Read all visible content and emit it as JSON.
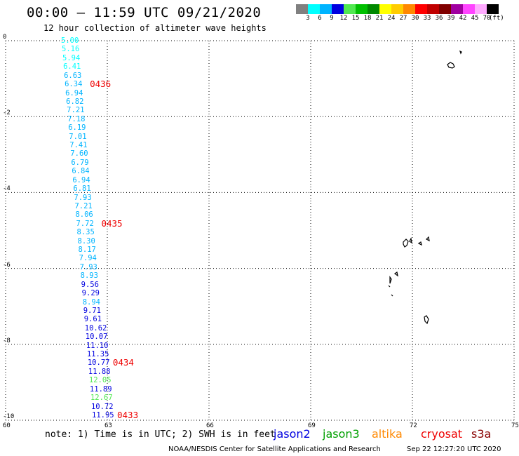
{
  "header": {
    "title": "00:00 – 11:59 UTC 09/21/2020",
    "subtitle": "12 hour collection of altimeter wave heights"
  },
  "legend": {
    "bins": [
      {
        "label": "3",
        "color": "#808080"
      },
      {
        "label": "6",
        "color": "#00ffff"
      },
      {
        "label": "9",
        "color": "#00b4ff"
      },
      {
        "label": "12",
        "color": "#0000e0"
      },
      {
        "label": "15",
        "color": "#50e850"
      },
      {
        "label": "18",
        "color": "#00c000"
      },
      {
        "label": "21",
        "color": "#008800"
      },
      {
        "label": "24",
        "color": "#ffff00"
      },
      {
        "label": "27",
        "color": "#ffcc00"
      },
      {
        "label": "30",
        "color": "#ff8800"
      },
      {
        "label": "33",
        "color": "#ff0000"
      },
      {
        "label": "36",
        "color": "#c00000"
      },
      {
        "label": "39",
        "color": "#800000"
      },
      {
        "label": "42",
        "color": "#a000a0"
      },
      {
        "label": "45",
        "color": "#ff44ff"
      },
      {
        "label": "70",
        "color": "#ffaaff"
      },
      {
        "label": "",
        "color": "#000000"
      }
    ],
    "unit_label": "(ft)"
  },
  "axes": {
    "lon_ticks": [
      "60",
      "63",
      "66",
      "69",
      "72",
      "75"
    ],
    "lat_ticks": [
      "0",
      "-2",
      "-4",
      "-6",
      "-8",
      "-10"
    ],
    "lon_range": [
      60,
      75
    ],
    "lat_range": [
      0,
      -10
    ],
    "grid": "dotted"
  },
  "track": {
    "values": [
      {
        "text": "5.00",
        "color": "#00ffff"
      },
      {
        "text": "5.16",
        "color": "#00ffff"
      },
      {
        "text": "5.94",
        "color": "#00ffff"
      },
      {
        "text": "6.41",
        "color": "#00ffff"
      },
      {
        "text": "6.63",
        "color": "#00b4ff"
      },
      {
        "text": "6.34",
        "color": "#00b4ff"
      },
      {
        "text": "6.94",
        "color": "#00b4ff"
      },
      {
        "text": "6.82",
        "color": "#00b4ff"
      },
      {
        "text": "7.21",
        "color": "#00b4ff"
      },
      {
        "text": "7.18",
        "color": "#00b4ff"
      },
      {
        "text": "6.19",
        "color": "#00b4ff"
      },
      {
        "text": "7.01",
        "color": "#00b4ff"
      },
      {
        "text": "7.41",
        "color": "#00b4ff"
      },
      {
        "text": "7.60",
        "color": "#00b4ff"
      },
      {
        "text": "6.79",
        "color": "#00b4ff"
      },
      {
        "text": "6.84",
        "color": "#00b4ff"
      },
      {
        "text": "6.94",
        "color": "#00b4ff"
      },
      {
        "text": "6.81",
        "color": "#00b4ff"
      },
      {
        "text": "7.93",
        "color": "#00b4ff"
      },
      {
        "text": "7.21",
        "color": "#00b4ff"
      },
      {
        "text": "8.06",
        "color": "#00b4ff"
      },
      {
        "text": "7.72",
        "color": "#00b4ff"
      },
      {
        "text": "8.35",
        "color": "#00b4ff"
      },
      {
        "text": "8.30",
        "color": "#00b4ff"
      },
      {
        "text": "8.17",
        "color": "#00b4ff"
      },
      {
        "text": "7.94",
        "color": "#00b4ff"
      },
      {
        "text": "7.93",
        "color": "#00b4ff"
      },
      {
        "text": "8.93",
        "color": "#00b4ff"
      },
      {
        "text": "9.56",
        "color": "#0000e0"
      },
      {
        "text": "9.29",
        "color": "#0000e0"
      },
      {
        "text": "8.94",
        "color": "#00b4ff"
      },
      {
        "text": "9.71",
        "color": "#0000e0"
      },
      {
        "text": "9.61",
        "color": "#0000e0"
      },
      {
        "text": "10.62",
        "color": "#0000e0"
      },
      {
        "text": "10.07",
        "color": "#0000e0"
      },
      {
        "text": "11.10",
        "color": "#0000e0"
      },
      {
        "text": "11.35",
        "color": "#0000e0"
      },
      {
        "text": "10.77",
        "color": "#0000e0"
      },
      {
        "text": "11.88",
        "color": "#0000e0"
      },
      {
        "text": "12.05",
        "color": "#50e850"
      },
      {
        "text": "11.89",
        "color": "#0000e0"
      },
      {
        "text": "12.67",
        "color": "#50e850"
      },
      {
        "text": "10.72",
        "color": "#0000e0"
      },
      {
        "text": "11.95",
        "color": "#0000e0"
      }
    ],
    "time_labels": [
      {
        "text": "0436",
        "after_index": 5
      },
      {
        "text": "0435",
        "after_index": 21
      },
      {
        "text": "0434",
        "after_index": 37
      },
      {
        "text": "0433",
        "after_index": 43
      }
    ]
  },
  "footer": {
    "note": "note: 1) Time is in UTC; 2) SWH is in feet",
    "satellites": [
      {
        "name": "jason2",
        "color": "#0000e0"
      },
      {
        "name": "jason3",
        "color": "#00a000"
      },
      {
        "name": "altika",
        "color": "#ff8800"
      },
      {
        "name": "cryosat",
        "color": "#ee0000"
      },
      {
        "name": "s3a",
        "color": "#880000"
      }
    ],
    "credit": "NOAA/NESDIS Center for Satellite Applications and Research",
    "timestamp": "Sep 22 12:27:20 UTC 2020"
  }
}
